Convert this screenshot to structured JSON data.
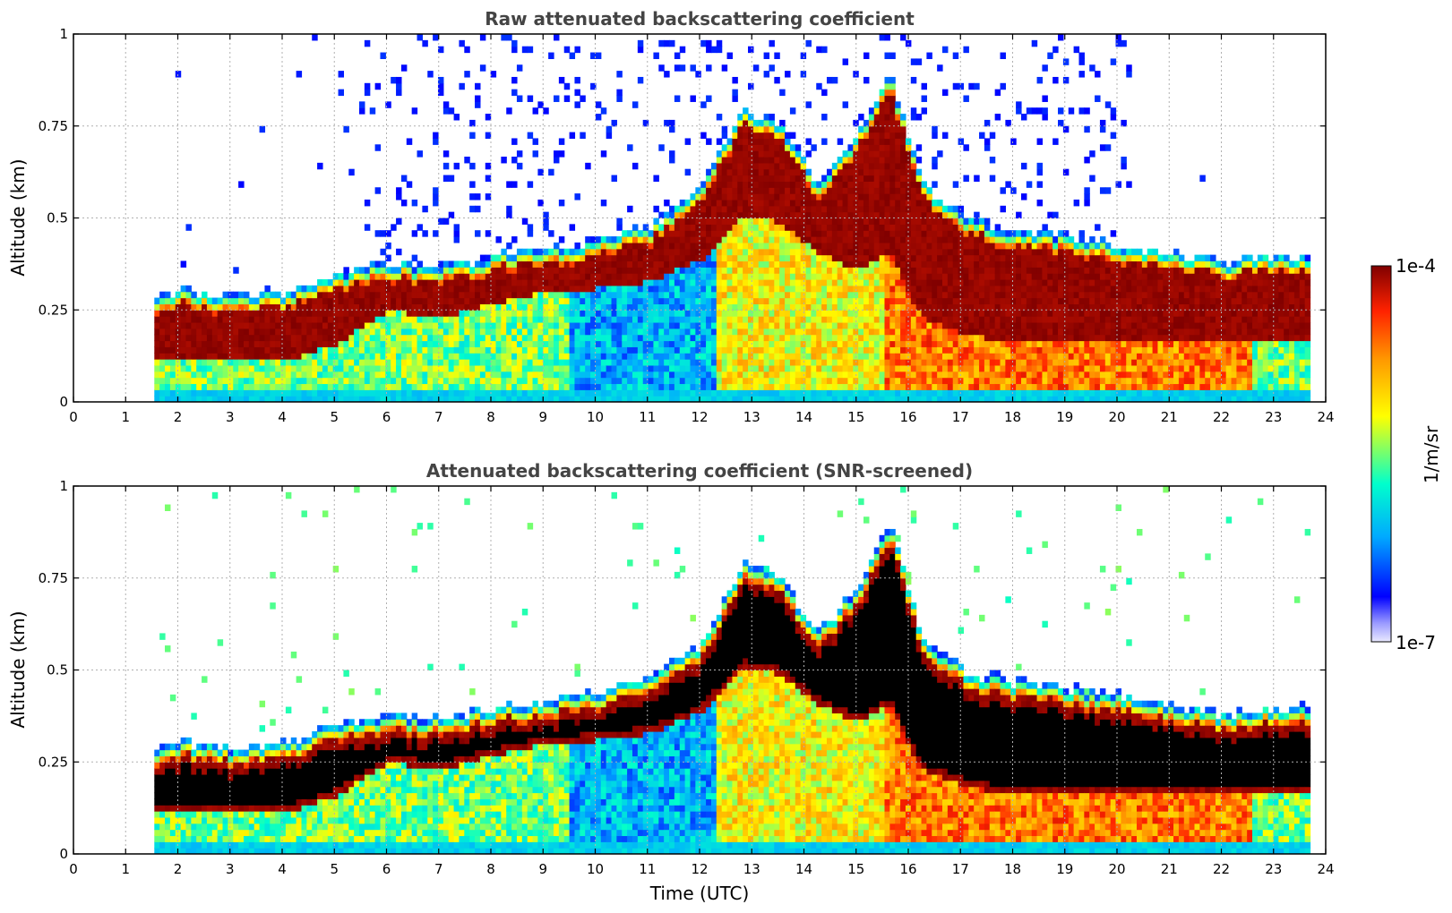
{
  "chart_data": [
    {
      "type": "heatmap",
      "title": "Raw attenuated backscattering coefficient",
      "xlabel": "",
      "ylabel": "Altitude (km)",
      "xlim": [
        0,
        24
      ],
      "ylim": [
        0,
        1
      ],
      "x_ticks": [
        0,
        1,
        2,
        3,
        4,
        5,
        6,
        7,
        8,
        9,
        10,
        11,
        12,
        13,
        14,
        15,
        16,
        17,
        18,
        19,
        20,
        21,
        22,
        23,
        24
      ],
      "x_tick_labels": [
        "0",
        "1",
        "2",
        "3",
        "4",
        "5",
        "6",
        "7",
        "8",
        "9",
        "10",
        "11",
        "12",
        "13",
        "14",
        "15",
        "16",
        "17",
        "18",
        "19",
        "20",
        "21",
        "22",
        "23",
        "24"
      ],
      "y_ticks": [
        0,
        0.25,
        0.5,
        0.75,
        1
      ],
      "y_tick_labels": [
        "0",
        "0.25",
        "0.5",
        "0.75",
        "1"
      ],
      "grid": true,
      "data_time_range": [
        1.55,
        23.7
      ],
      "layer_time_hours": [
        1.6,
        2.0,
        3.0,
        4.0,
        5.0,
        6.0,
        7.0,
        8.0,
        9.0,
        10.0,
        11.0,
        12.0,
        12.8,
        13.5,
        14.2,
        15.0,
        15.6,
        16.2,
        17.0,
        18.0,
        19.0,
        20.0,
        21.0,
        22.0,
        23.0,
        23.7
      ],
      "layer_top_km": [
        0.24,
        0.26,
        0.24,
        0.25,
        0.3,
        0.33,
        0.32,
        0.35,
        0.37,
        0.39,
        0.43,
        0.53,
        0.75,
        0.7,
        0.55,
        0.68,
        0.85,
        0.55,
        0.45,
        0.42,
        0.4,
        0.38,
        0.36,
        0.33,
        0.35,
        0.35
      ],
      "layer_bottom_km": [
        0.1,
        0.11,
        0.1,
        0.1,
        0.15,
        0.24,
        0.22,
        0.26,
        0.29,
        0.3,
        0.32,
        0.38,
        0.5,
        0.48,
        0.4,
        0.35,
        0.4,
        0.22,
        0.18,
        0.15,
        0.16,
        0.16,
        0.16,
        0.15,
        0.15,
        0.15
      ],
      "screened": false
    },
    {
      "type": "heatmap",
      "title": "Attenuated backscattering coefficient (SNR-screened)",
      "xlabel": "Time (UTC)",
      "ylabel": "Altitude (km)",
      "xlim": [
        0,
        24
      ],
      "ylim": [
        0,
        1
      ],
      "x_ticks": [
        0,
        1,
        2,
        3,
        4,
        5,
        6,
        7,
        8,
        9,
        10,
        11,
        12,
        13,
        14,
        15,
        16,
        17,
        18,
        19,
        20,
        21,
        22,
        23,
        24
      ],
      "x_tick_labels": [
        "0",
        "1",
        "2",
        "3",
        "4",
        "5",
        "6",
        "7",
        "8",
        "9",
        "10",
        "11",
        "12",
        "13",
        "14",
        "15",
        "16",
        "17",
        "18",
        "19",
        "20",
        "21",
        "22",
        "23",
        "24"
      ],
      "y_ticks": [
        0,
        0.25,
        0.5,
        0.75,
        1
      ],
      "y_tick_labels": [
        "0",
        "0.25",
        "0.5",
        "0.75",
        "1"
      ],
      "grid": true,
      "data_time_range": [
        1.55,
        23.7
      ],
      "screened": true
    }
  ],
  "colorbar": {
    "label": "1/m/sr",
    "max_label": "1e-4",
    "min_label": "1e-7",
    "scale": "log",
    "colors": [
      "#e8e8ff",
      "#0000ff",
      "#00bfff",
      "#00ffcc",
      "#ffff00",
      "#ff8000",
      "#ff0000",
      "#800000"
    ]
  }
}
